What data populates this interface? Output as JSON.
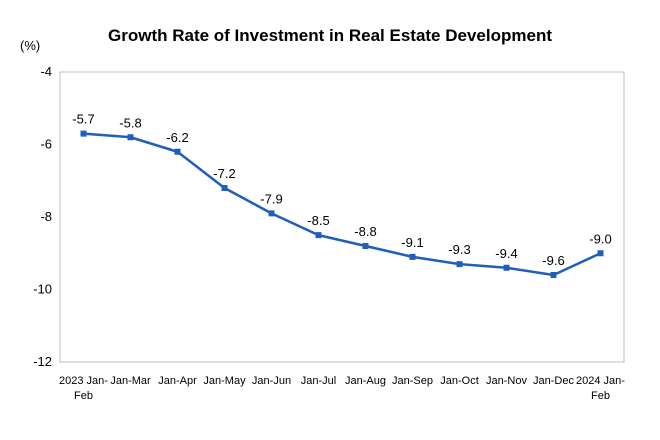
{
  "chart_data": {
    "type": "line",
    "title": "Growth Rate of Investment in Real Estate Development",
    "ylabel": "(%)",
    "xlabel": "",
    "ylim": [
      -12,
      -4
    ],
    "yticks": [
      -4,
      -6,
      -8,
      -10,
      -12
    ],
    "grid": false,
    "legend": "none",
    "categories": [
      [
        "2023 Jan-",
        "Feb"
      ],
      [
        "Jan-Mar"
      ],
      [
        "Jan-Apr"
      ],
      [
        "Jan-May"
      ],
      [
        "Jan-Jun"
      ],
      [
        "Jan-Jul"
      ],
      [
        "Jan-Aug"
      ],
      [
        "Jan-Sep"
      ],
      [
        "Jan-Oct"
      ],
      [
        "Jan-Nov"
      ],
      [
        "Jan-Dec"
      ],
      [
        "2024 Jan-",
        "Feb"
      ]
    ],
    "series": [
      {
        "values": [
          -5.7,
          -5.8,
          -6.2,
          -7.2,
          -7.9,
          -8.5,
          -8.8,
          -9.1,
          -9.3,
          -9.4,
          -9.6,
          -9.0
        ]
      }
    ],
    "line_color": "#1f5fb8"
  }
}
